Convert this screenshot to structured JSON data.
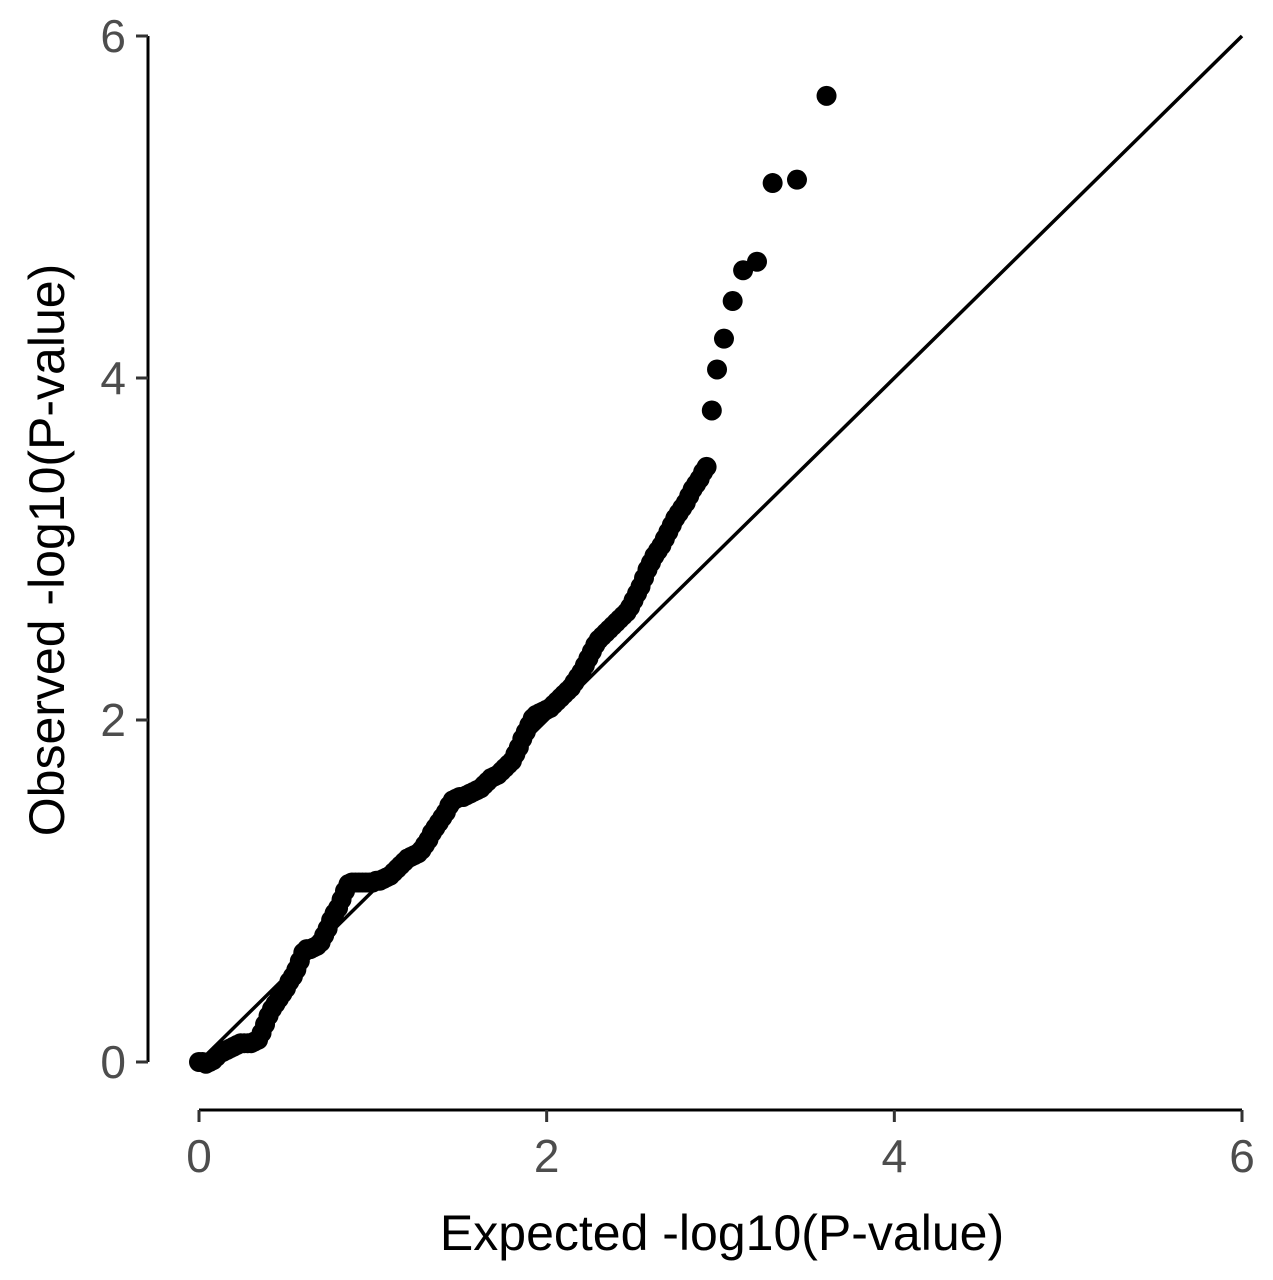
{
  "chart_data": {
    "type": "scatter",
    "title": "",
    "xlabel": "Expected -log10(P-value)",
    "ylabel": "Observed -log10(P-value)",
    "xlim": [
      0,
      6
    ],
    "ylim": [
      0,
      6
    ],
    "x_ticks": [
      0,
      2,
      4,
      6
    ],
    "y_ticks": [
      0,
      2,
      4,
      6
    ],
    "x_tick_labels": [
      "0",
      "2",
      "4",
      "6"
    ],
    "y_tick_labels": [
      "0",
      "2",
      "4",
      "6"
    ],
    "grid": false,
    "legend": "none",
    "point_color": "#000000",
    "reference_line": {
      "from": [
        0,
        0
      ],
      "to": [
        6,
        6
      ],
      "color": "#000000"
    },
    "points": [
      [
        0.0,
        0.0
      ],
      [
        0.02,
        0.0
      ],
      [
        0.04,
        -0.01
      ],
      [
        0.06,
        0.0
      ],
      [
        0.08,
        0.01
      ],
      [
        0.1,
        0.03
      ],
      [
        0.12,
        0.05
      ],
      [
        0.14,
        0.06
      ],
      [
        0.16,
        0.07
      ],
      [
        0.18,
        0.08
      ],
      [
        0.2,
        0.09
      ],
      [
        0.22,
        0.1
      ],
      [
        0.24,
        0.11
      ],
      [
        0.26,
        0.11
      ],
      [
        0.28,
        0.11
      ],
      [
        0.3,
        0.11
      ],
      [
        0.32,
        0.12
      ],
      [
        0.34,
        0.13
      ],
      [
        0.36,
        0.17
      ],
      [
        0.38,
        0.22
      ],
      [
        0.4,
        0.27
      ],
      [
        0.42,
        0.31
      ],
      [
        0.44,
        0.34
      ],
      [
        0.46,
        0.37
      ],
      [
        0.48,
        0.4
      ],
      [
        0.5,
        0.43
      ],
      [
        0.52,
        0.47
      ],
      [
        0.54,
        0.5
      ],
      [
        0.56,
        0.54
      ],
      [
        0.58,
        0.59
      ],
      [
        0.6,
        0.64
      ],
      [
        0.62,
        0.66
      ],
      [
        0.64,
        0.66
      ],
      [
        0.66,
        0.67
      ],
      [
        0.68,
        0.68
      ],
      [
        0.7,
        0.7
      ],
      [
        0.72,
        0.74
      ],
      [
        0.74,
        0.78
      ],
      [
        0.76,
        0.83
      ],
      [
        0.78,
        0.87
      ],
      [
        0.8,
        0.9
      ],
      [
        0.82,
        0.95
      ],
      [
        0.84,
        1.0
      ],
      [
        0.86,
        1.04
      ],
      [
        0.88,
        1.05
      ],
      [
        0.9,
        1.05
      ],
      [
        0.92,
        1.05
      ],
      [
        0.94,
        1.05
      ],
      [
        0.96,
        1.05
      ],
      [
        0.98,
        1.05
      ],
      [
        1.0,
        1.05
      ],
      [
        1.02,
        1.06
      ],
      [
        1.04,
        1.06
      ],
      [
        1.06,
        1.07
      ],
      [
        1.08,
        1.08
      ],
      [
        1.1,
        1.09
      ],
      [
        1.12,
        1.11
      ],
      [
        1.14,
        1.13
      ],
      [
        1.16,
        1.15
      ],
      [
        1.18,
        1.17
      ],
      [
        1.2,
        1.19
      ],
      [
        1.22,
        1.2
      ],
      [
        1.24,
        1.21
      ],
      [
        1.26,
        1.22
      ],
      [
        1.28,
        1.24
      ],
      [
        1.3,
        1.27
      ],
      [
        1.32,
        1.3
      ],
      [
        1.34,
        1.34
      ],
      [
        1.36,
        1.37
      ],
      [
        1.38,
        1.4
      ],
      [
        1.4,
        1.43
      ],
      [
        1.42,
        1.46
      ],
      [
        1.44,
        1.5
      ],
      [
        1.46,
        1.53
      ],
      [
        1.48,
        1.54
      ],
      [
        1.5,
        1.55
      ],
      [
        1.52,
        1.55
      ],
      [
        1.54,
        1.56
      ],
      [
        1.56,
        1.57
      ],
      [
        1.58,
        1.58
      ],
      [
        1.6,
        1.59
      ],
      [
        1.62,
        1.6
      ],
      [
        1.64,
        1.62
      ],
      [
        1.66,
        1.64
      ],
      [
        1.68,
        1.66
      ],
      [
        1.7,
        1.67
      ],
      [
        1.72,
        1.68
      ],
      [
        1.74,
        1.7
      ],
      [
        1.76,
        1.72
      ],
      [
        1.78,
        1.74
      ],
      [
        1.8,
        1.76
      ],
      [
        1.82,
        1.8
      ],
      [
        1.84,
        1.84
      ],
      [
        1.86,
        1.89
      ],
      [
        1.88,
        1.93
      ],
      [
        1.9,
        1.97
      ],
      [
        1.92,
        2.01
      ],
      [
        1.94,
        2.03
      ],
      [
        1.96,
        2.04
      ],
      [
        1.98,
        2.05
      ],
      [
        2.0,
        2.06
      ],
      [
        2.02,
        2.07
      ],
      [
        2.04,
        2.09
      ],
      [
        2.06,
        2.11
      ],
      [
        2.08,
        2.13
      ],
      [
        2.1,
        2.15
      ],
      [
        2.12,
        2.17
      ],
      [
        2.14,
        2.19
      ],
      [
        2.16,
        2.22
      ],
      [
        2.18,
        2.25
      ],
      [
        2.2,
        2.28
      ],
      [
        2.22,
        2.32
      ],
      [
        2.24,
        2.36
      ],
      [
        2.26,
        2.4
      ],
      [
        2.28,
        2.44
      ],
      [
        2.3,
        2.47
      ],
      [
        2.32,
        2.49
      ],
      [
        2.34,
        2.51
      ],
      [
        2.36,
        2.53
      ],
      [
        2.38,
        2.55
      ],
      [
        2.4,
        2.57
      ],
      [
        2.42,
        2.59
      ],
      [
        2.44,
        2.61
      ],
      [
        2.46,
        2.63
      ],
      [
        2.48,
        2.66
      ],
      [
        2.5,
        2.7
      ],
      [
        2.52,
        2.74
      ],
      [
        2.54,
        2.78
      ],
      [
        2.56,
        2.83
      ],
      [
        2.58,
        2.88
      ],
      [
        2.6,
        2.92
      ],
      [
        2.62,
        2.96
      ],
      [
        2.64,
        2.99
      ],
      [
        2.66,
        3.02
      ],
      [
        2.68,
        3.06
      ],
      [
        2.7,
        3.1
      ],
      [
        2.72,
        3.14
      ],
      [
        2.74,
        3.18
      ],
      [
        2.76,
        3.21
      ],
      [
        2.78,
        3.24
      ],
      [
        2.8,
        3.27
      ],
      [
        2.82,
        3.31
      ],
      [
        2.84,
        3.35
      ],
      [
        2.86,
        3.38
      ],
      [
        2.88,
        3.41
      ],
      [
        2.9,
        3.45
      ],
      [
        2.92,
        3.48
      ],
      [
        2.95,
        3.81
      ],
      [
        2.98,
        4.05
      ],
      [
        3.02,
        4.23
      ],
      [
        3.07,
        4.45
      ],
      [
        3.13,
        4.63
      ],
      [
        3.21,
        4.68
      ],
      [
        3.3,
        5.14
      ],
      [
        3.44,
        5.16
      ],
      [
        3.61,
        5.65
      ]
    ]
  }
}
